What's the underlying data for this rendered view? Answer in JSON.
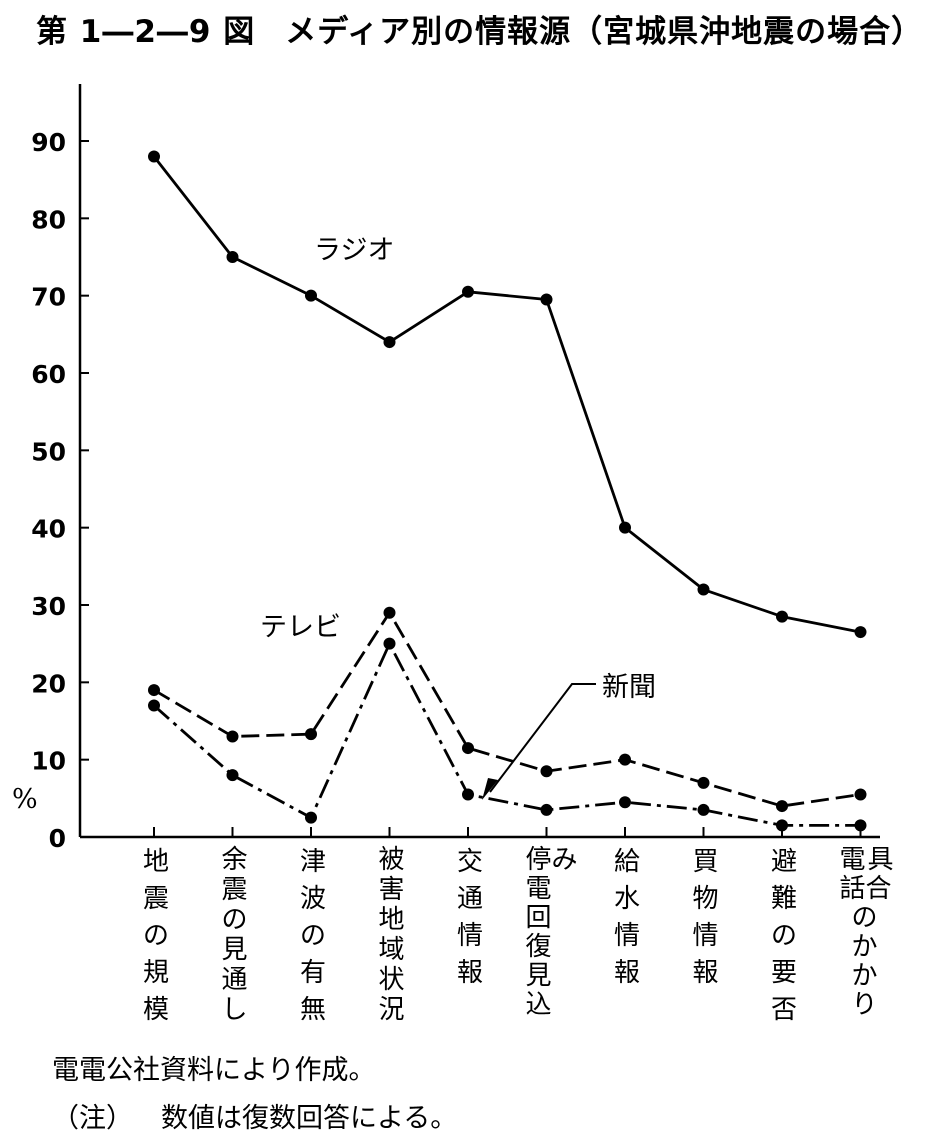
{
  "title": {
    "figure_no": "第 1―2―9 図",
    "text": "メディア別の情報源（宮城県沖地震の場合）"
  },
  "notes": {
    "source": "電電公社資料により作成。",
    "note_label": "（注）",
    "note_text": "数値は復数回答による。"
  },
  "chart_data": {
    "type": "line",
    "title": "メディア別の情報源（宮城県沖地震の場合）",
    "ylabel": "%",
    "xlabel": "",
    "ylim": [
      0,
      90
    ],
    "yticks": [
      0,
      10,
      20,
      30,
      40,
      50,
      60,
      70,
      80,
      90
    ],
    "grid": false,
    "categories": [
      [
        "地",
        "震",
        "の",
        "規",
        "模"
      ],
      [
        "余",
        "震",
        "の",
        "見",
        "通",
        "し"
      ],
      [
        "津",
        "波",
        "の",
        "有",
        "無"
      ],
      [
        "被",
        "害",
        "地",
        "域",
        "状",
        "況"
      ],
      [
        "交",
        "通",
        "情",
        "報"
      ],
      [
        "停",
        "み",
        "電",
        "回",
        "復",
        "見",
        "込"
      ],
      [
        "給",
        "水",
        "情",
        "報"
      ],
      [
        "買",
        "物",
        "情",
        "報"
      ],
      [
        "避",
        "難",
        "の",
        "要",
        "否"
      ],
      [
        "電",
        "具",
        "話",
        "合",
        "の",
        "か",
        "か",
        "り"
      ]
    ],
    "category_labels": [
      "地震の規模",
      "余震の見通し",
      "津波の有無",
      "被害地域状況",
      "交通情報",
      "停電回復見込み",
      "給水情報",
      "買物情報",
      "避難の要否",
      "電話のかかり具合"
    ],
    "series": [
      {
        "name": "ラジオ",
        "style": "solid",
        "values": [
          88,
          75,
          70,
          64,
          70.5,
          69.5,
          40,
          32,
          28.5,
          26.5
        ]
      },
      {
        "name": "テレビ",
        "style": "dashed",
        "values": [
          19,
          13,
          13.3,
          29,
          11.5,
          8.5,
          10,
          7,
          4,
          5.5
        ]
      },
      {
        "name": "新聞",
        "style": "dashdot",
        "values": [
          17,
          8,
          2.5,
          25,
          5.5,
          3.5,
          4.5,
          3.5,
          1.5,
          1.5
        ]
      }
    ]
  }
}
